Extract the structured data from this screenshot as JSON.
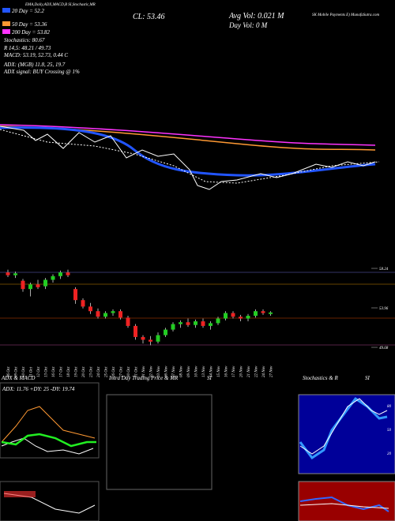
{
  "header": {
    "title": "SK Mobile Payments E) MunafaSutra.com",
    "indicators": "EMA,Daily,ADX,MACD,B SI,Stochastic,MR"
  },
  "legend": [
    "20 Day = 52.2",
    "50 Day = 53.36",
    "200 Day = 53.82"
  ],
  "stats": [
    "Stochastics: 80.67",
    "R  14,5: 48.21 / 49.73",
    "MACD: 53.19, 52.73, 0.44  C",
    "ADX:      (MGB) 11.8,  25,  19.7",
    "ADX  signal:          BUY Crossing @ 1%"
  ],
  "close": "CL: 53.46",
  "avg_vol": "Avg Vol: 0.021 M",
  "day_vol": "Day Vol: 0  M",
  "price_axis": {
    "ticks": [
      58.24,
      53.96,
      49.68
    ]
  },
  "candles": [
    [
      57.8,
      58.1,
      57.3,
      57.5
    ],
    [
      57.5,
      57.9,
      57.2,
      57.7
    ],
    [
      56.9,
      57.1,
      55.7,
      56.0
    ],
    [
      56.0,
      56.7,
      55.2,
      56.5
    ],
    [
      56.5,
      57.0,
      56.0,
      56.2
    ],
    [
      56.3,
      57.2,
      56.0,
      57.0
    ],
    [
      57.0,
      57.6,
      56.7,
      57.4
    ],
    [
      57.4,
      58.0,
      57.1,
      57.8
    ],
    [
      57.8,
      58.1,
      57.3,
      57.5
    ],
    [
      56.0,
      56.2,
      54.4,
      54.8
    ],
    [
      54.8,
      55.0,
      53.9,
      54.1
    ],
    [
      54.1,
      54.5,
      53.3,
      53.6
    ],
    [
      53.6,
      53.9,
      52.8,
      53.0
    ],
    [
      53.0,
      53.6,
      52.8,
      53.4
    ],
    [
      53.4,
      53.8,
      53.1,
      53.6
    ],
    [
      53.6,
      53.8,
      52.7,
      52.9
    ],
    [
      52.9,
      53.1,
      51.8,
      52.0
    ],
    [
      52.0,
      52.2,
      50.5,
      50.8
    ],
    [
      50.8,
      51.0,
      50.1,
      50.5
    ],
    [
      50.5,
      50.9,
      49.9,
      50.3
    ],
    [
      50.3,
      51.3,
      50.1,
      51.0
    ],
    [
      51.0,
      51.8,
      50.8,
      51.6
    ],
    [
      51.6,
      52.4,
      51.4,
      52.2
    ],
    [
      52.2,
      52.6,
      51.8,
      52.4
    ],
    [
      52.4,
      52.8,
      51.9,
      52.1
    ],
    [
      52.1,
      52.7,
      51.8,
      52.5
    ],
    [
      52.5,
      52.8,
      51.8,
      52.0
    ],
    [
      52.0,
      52.5,
      51.6,
      52.3
    ],
    [
      52.3,
      53.0,
      52.1,
      52.8
    ],
    [
      52.8,
      53.6,
      52.6,
      53.4
    ],
    [
      53.4,
      53.6,
      52.8,
      53.0
    ],
    [
      53.0,
      53.2,
      52.5,
      52.8
    ],
    [
      52.8,
      53.3,
      52.5,
      53.1
    ],
    [
      53.1,
      53.8,
      52.9,
      53.6
    ],
    [
      53.6,
      53.8,
      53.2,
      53.4
    ],
    [
      53.3,
      53.6,
      53.1,
      53.46
    ]
  ],
  "dates": [
    "06 Oct",
    "09 Oct",
    "10 Oct",
    "11 Oct",
    "12 Oct",
    "13 Oct",
    "16 Oct",
    "17 Oct",
    "18 Oct",
    "19 Oct",
    "20 Oct",
    "23 Oct",
    "24 Oct",
    "25 Oct",
    "26 Oct",
    "27 Oct",
    "30 Oct",
    "31 Oct",
    "01 Nov",
    "02 Nov",
    "03 Nov",
    "06 Nov",
    "07 Nov",
    "08 Nov",
    "09 Nov",
    "10 Nov",
    "13 Nov",
    "14 Nov",
    "15 Nov",
    "16 Nov",
    "17 Nov",
    "20 Nov",
    "21 Nov",
    "22 Nov",
    "24 Nov",
    "27 Nov"
  ],
  "panels": {
    "adx_title": "ADX  & MACD",
    "adx_values": "ADX: 11.76  +DY: 25  -DY: 19.74",
    "intraday_title": "Intra  Day Trading Price  & MR",
    "intraday_si": "SI",
    "stoch_title": "Stochastics & R",
    "stoch_si": "SI",
    "stoch_ticks": [
      "80",
      "50",
      "20"
    ]
  }
}
